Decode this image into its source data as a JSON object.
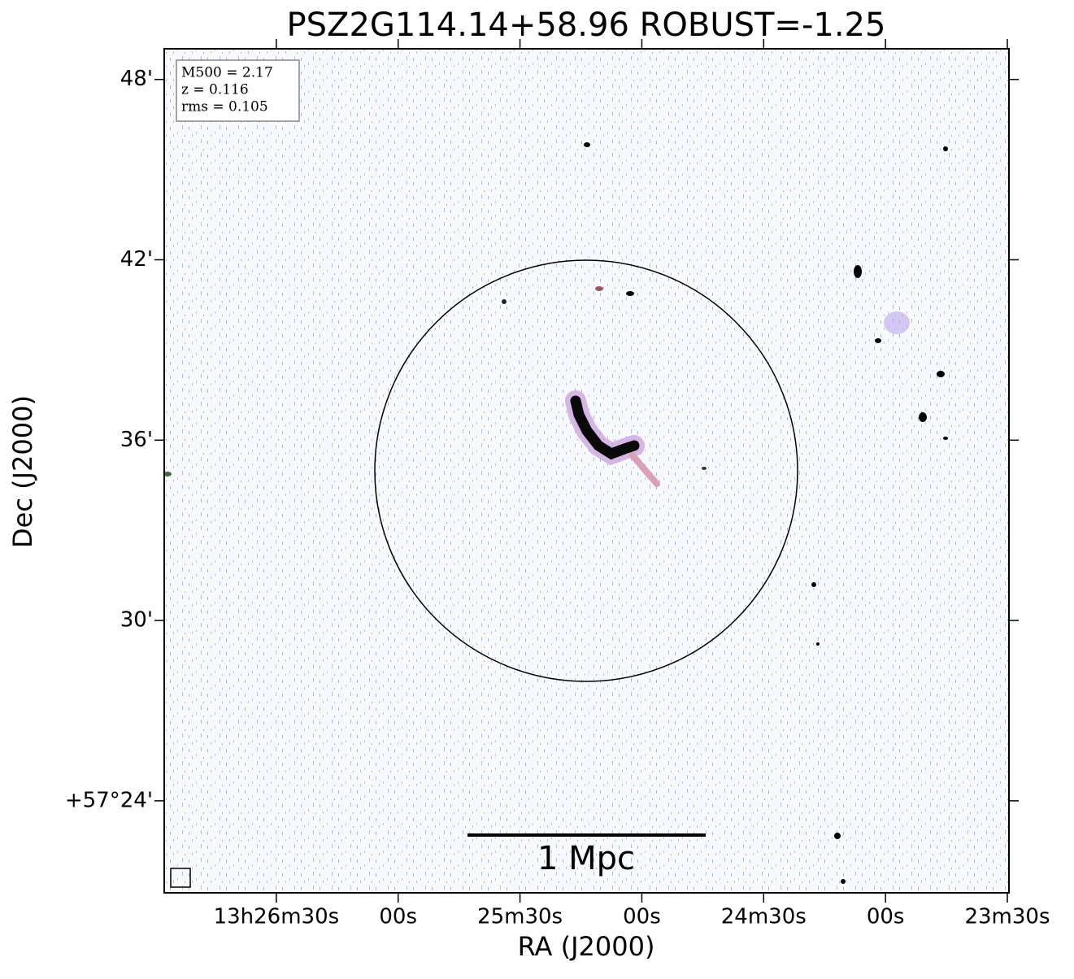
{
  "chart_data": {
    "type": "image",
    "title": "PSZ2G114.14+58.96 ROBUST=-1.25",
    "x_label": "RA (J2000)",
    "y_label": "Dec (J2000)",
    "xlim": [
      48417.6,
      48209.6
    ],
    "xticks": [
      {
        "value": 48390,
        "label": "13h26m30s"
      },
      {
        "value": 48360,
        "label": "00s"
      },
      {
        "value": 48330,
        "label": "25m30s"
      },
      {
        "value": 48300,
        "label": "00s"
      },
      {
        "value": 48270,
        "label": "24m30s"
      },
      {
        "value": 48240,
        "label": "00s"
      },
      {
        "value": 48210,
        "label": "23m30s"
      }
    ],
    "ylim": [
      57.349,
      57.817
    ],
    "yticks": [
      {
        "value": 57.4,
        "label": "+57°24'"
      },
      {
        "value": 57.5,
        "label": "30'"
      },
      {
        "value": 57.6,
        "label": "36'"
      },
      {
        "value": 57.7,
        "label": "42'"
      },
      {
        "value": 57.8,
        "label": "48'"
      }
    ],
    "info_box": [
      "M500 = 2.17",
      "z = 0.116",
      "rms = 0.105"
    ],
    "scale_bar_label": "1 Mpc"
  }
}
